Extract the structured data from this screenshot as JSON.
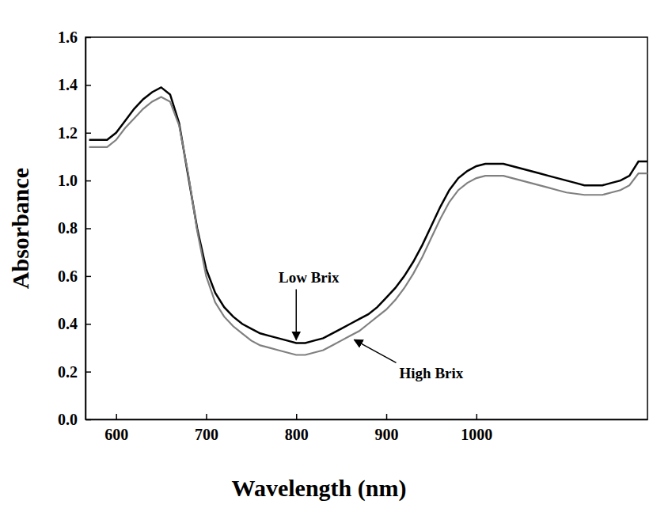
{
  "chart_data": {
    "type": "line",
    "x_label": "Wavelength (nm)",
    "y_label": "Absorbance",
    "x": [
      570,
      580,
      590,
      600,
      610,
      620,
      630,
      640,
      650,
      660,
      670,
      680,
      690,
      700,
      710,
      720,
      730,
      740,
      750,
      760,
      770,
      780,
      790,
      800,
      810,
      820,
      830,
      840,
      850,
      860,
      870,
      880,
      890,
      900,
      910,
      920,
      930,
      940,
      950,
      960,
      970,
      980,
      990,
      1000,
      1010,
      1020,
      1030,
      1040,
      1050,
      1060,
      1070,
      1080,
      1090,
      1100,
      1110,
      1120,
      1130,
      1140,
      1150,
      1160,
      1170,
      1180,
      1190
    ],
    "series": [
      {
        "name": "Low Brix",
        "color": "#000000",
        "line_style": "solid",
        "values": [
          1.17,
          1.17,
          1.17,
          1.2,
          1.25,
          1.3,
          1.34,
          1.37,
          1.39,
          1.36,
          1.24,
          1.02,
          0.8,
          0.63,
          0.53,
          0.47,
          0.43,
          0.4,
          0.38,
          0.36,
          0.35,
          0.34,
          0.33,
          0.32,
          0.32,
          0.33,
          0.34,
          0.36,
          0.38,
          0.4,
          0.42,
          0.44,
          0.47,
          0.51,
          0.55,
          0.6,
          0.66,
          0.73,
          0.81,
          0.89,
          0.96,
          1.01,
          1.04,
          1.06,
          1.07,
          1.07,
          1.07,
          1.06,
          1.05,
          1.04,
          1.03,
          1.02,
          1.01,
          1.0,
          0.99,
          0.98,
          0.98,
          0.98,
          0.99,
          1.0,
          1.02,
          1.08,
          1.08
        ]
      },
      {
        "name": "High Brix",
        "color": "#808080",
        "line_style": "solid",
        "values": [
          1.14,
          1.14,
          1.14,
          1.17,
          1.22,
          1.26,
          1.3,
          1.33,
          1.35,
          1.33,
          1.23,
          1.03,
          0.79,
          0.6,
          0.49,
          0.43,
          0.39,
          0.36,
          0.33,
          0.31,
          0.3,
          0.29,
          0.28,
          0.27,
          0.27,
          0.28,
          0.29,
          0.31,
          0.33,
          0.35,
          0.37,
          0.4,
          0.43,
          0.46,
          0.5,
          0.55,
          0.61,
          0.68,
          0.76,
          0.84,
          0.91,
          0.96,
          0.99,
          1.01,
          1.02,
          1.02,
          1.02,
          1.01,
          1.0,
          0.99,
          0.98,
          0.97,
          0.96,
          0.95,
          0.945,
          0.94,
          0.94,
          0.94,
          0.95,
          0.96,
          0.98,
          1.03,
          1.03
        ]
      }
    ],
    "annotations": [
      {
        "text": "Low Brix",
        "x": 800,
        "y": 0.32
      },
      {
        "text": "High Brix",
        "x": 860,
        "y": 0.35
      }
    ],
    "xlim": [
      566,
      1190
    ],
    "xticks": [
      600,
      700,
      800,
      900,
      1000
    ],
    "ylim": [
      0,
      1.6
    ],
    "yticks": [
      {
        "value": 0,
        "label": "0.0"
      },
      0.2,
      0.4,
      0.6,
      0.8,
      {
        "value": 1,
        "label": "1.0"
      },
      1.2,
      1.4,
      1.6
    ],
    "grid": false
  }
}
